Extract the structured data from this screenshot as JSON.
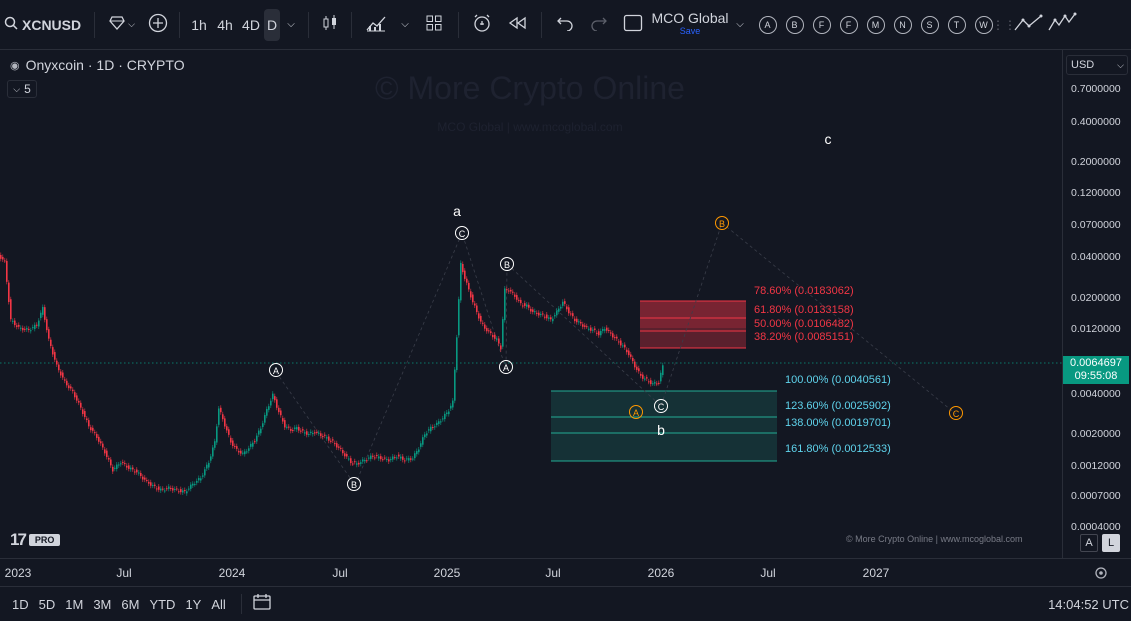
{
  "toolbar": {
    "symbol": "XCNUSD",
    "intervals": [
      "1h",
      "4h",
      "4D",
      "D"
    ],
    "active_interval": "D",
    "layout_name": "MCO Global",
    "save_label": "Save",
    "drawing_letters": [
      "A",
      "B",
      "F",
      "F",
      "M",
      "N",
      "S",
      "T",
      "W"
    ]
  },
  "legend": {
    "title": "Onyxcoin · 1D · CRYPTO",
    "indicators_count": "5"
  },
  "watermark": {
    "main": "© More Crypto Online",
    "sub": "MCO Global  |  www.mcoglobal.com"
  },
  "currency": "USD",
  "price_axis": {
    "ticks": [
      "0.7000000",
      "0.4000000",
      "0.2000000",
      "0.1200000",
      "0.0700000",
      "0.0400000",
      "0.0200000",
      "0.0120000",
      "0.0040000",
      "0.0020000",
      "0.0012000",
      "0.0007000",
      "0.0004000"
    ]
  },
  "last_price": {
    "value": "0.0064697",
    "countdown": "09:55:08"
  },
  "time_axis": {
    "labels": [
      "2023",
      "Jul",
      "2024",
      "Jul",
      "2025",
      "Jul",
      "2026",
      "Jul",
      "2027"
    ]
  },
  "fib_upper": [
    {
      "label": "78.60% (0.0183062)"
    },
    {
      "label": "61.80% (0.0133158)"
    },
    {
      "label": "50.00% (0.0106482)"
    },
    {
      "label": "38.20% (0.0085151)"
    }
  ],
  "fib_lower": [
    {
      "label": "100.00% (0.0040561)"
    },
    {
      "label": "123.60% (0.0025902)"
    },
    {
      "label": "138.00% (0.0019701)"
    },
    {
      "label": "161.80% (0.0012533)"
    }
  ],
  "wave_labels": {
    "a": "a",
    "b": "b",
    "c": "c",
    "A1": "A",
    "B1": "B",
    "C1": "C",
    "A2": "A",
    "B2": "B",
    "C2": "C",
    "A3": "A",
    "B3": "B",
    "C3": "C"
  },
  "copyright": "© More Crypto Online   |   www.mcoglobal.com",
  "logo": {
    "mark": "17",
    "badge": "PRO"
  },
  "scale_buttons": {
    "auto": "A",
    "log": "L"
  },
  "ranges": [
    "1D",
    "5D",
    "1M",
    "3M",
    "6M",
    "YTD",
    "1Y",
    "All"
  ],
  "clock": "14:04:52 UTC",
  "colors": {
    "up": "#089981",
    "down": "#f23645",
    "fib_red": "#f23645",
    "fib_cyan": "#22ab94",
    "orange": "#ff9800"
  }
}
